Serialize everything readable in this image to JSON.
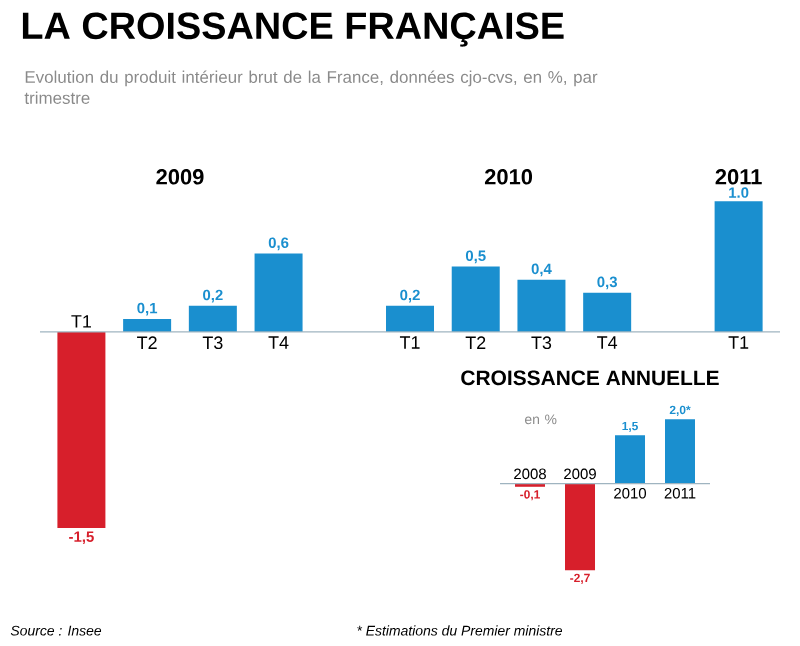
{
  "chart_data": [
    {
      "type": "bar",
      "title": "LA CROISSANCE FRANÇAISE",
      "subtitle": "Evolution du produit intérieur brut de la France, données cjo-cvs, en %, par trimestre",
      "categories": [
        "T1",
        "T2",
        "T3",
        "T4",
        null,
        "T1",
        "T2",
        "T3",
        "T4",
        null,
        "T1"
      ],
      "values": [
        -1.5,
        0.1,
        0.2,
        0.6,
        null,
        0.2,
        0.5,
        0.4,
        0.3,
        null,
        1.0
      ],
      "colors": [
        "#d71f2b",
        "#1a8fcf",
        "#1a8fcf",
        "#1a8fcf",
        null,
        "#1a8fcf",
        "#1a8fcf",
        "#1a8fcf",
        "#1a8fcf",
        null,
        "#1a8fcf"
      ],
      "value_labels": [
        "-1,5",
        "0,1",
        "0,2",
        "0,6",
        null,
        "0,2",
        "0,5",
        "0,4",
        "0,3",
        null,
        "1.0"
      ],
      "annotations": [
        "2009",
        "2010",
        "2011",
        "Source : Insee",
        "* Estimations du Premier ministre"
      ]
    },
    {
      "type": "bar",
      "title": "CROISSANCE ANNUELLE",
      "subtitle": "en %",
      "categories": [
        "2008",
        "2009",
        "2010",
        "2011"
      ],
      "values": [
        -0.1,
        -2.7,
        1.5,
        2.0
      ],
      "colors": [
        "#d71f2b",
        "#d71f2b",
        "#1a8fcf",
        "#1a8fcf"
      ],
      "value_labels": [
        "-0,1",
        "-2,7",
        "1,5",
        "2,0*"
      ]
    }
  ]
}
